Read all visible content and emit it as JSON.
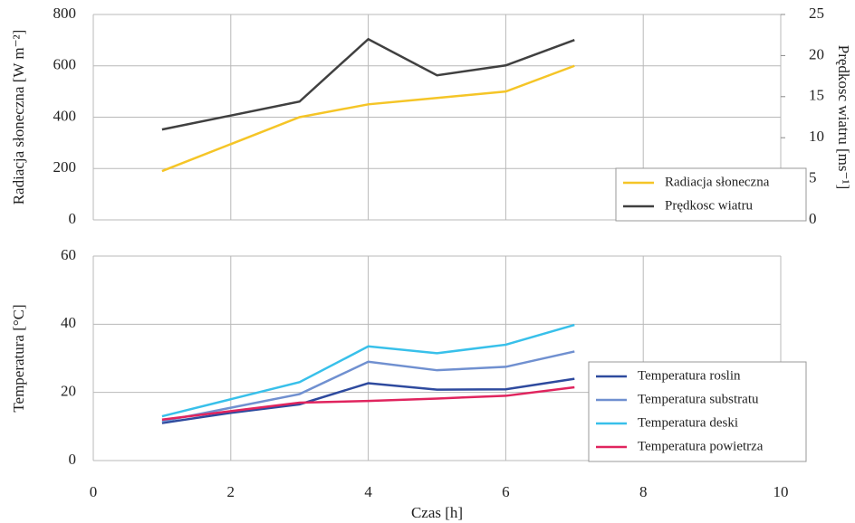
{
  "chart_data": [
    {
      "type": "line",
      "ylabel": "Radiacja słoneczna [W m⁻²]",
      "y2label": "Prędkosc wiatru [ms⁻¹]",
      "x": [
        1,
        2,
        3,
        4,
        5,
        6,
        7
      ],
      "xlim": [
        0,
        10
      ],
      "ylim": [
        0,
        800
      ],
      "yticks": [
        0,
        200,
        400,
        600,
        800
      ],
      "y2lim": [
        0,
        25
      ],
      "y2ticks": [
        0,
        5,
        10,
        15,
        20,
        25
      ],
      "grid": true,
      "legend": "lower right",
      "series": [
        {
          "name": "Radiacja słoneczna",
          "color": "#f5c527",
          "values": [
            190,
            295,
            400,
            450,
            475,
            500,
            600
          ]
        },
        {
          "name": "Prędkosc wiatru",
          "color": "#404040",
          "axis": "y2",
          "values": [
            11,
            12.7,
            14.4,
            22,
            17.6,
            18.8,
            21.9
          ]
        }
      ]
    },
    {
      "type": "line",
      "ylabel": "Temperatura [°C]",
      "xlabel": "Czas [h]",
      "x": [
        1,
        2,
        3,
        4,
        5,
        6,
        7
      ],
      "xlim": [
        0,
        10
      ],
      "xticks": [
        0,
        2,
        4,
        6,
        8,
        10
      ],
      "ylim": [
        0,
        60
      ],
      "yticks": [
        0,
        20,
        40,
        60
      ],
      "grid": true,
      "legend": "lower right",
      "series": [
        {
          "name": "Temperatura roslin",
          "color": "#2e4a9e",
          "values": [
            11,
            14,
            16.5,
            22.7,
            20.8,
            20.9,
            24
          ]
        },
        {
          "name": "Temperatura substratu",
          "color": "#7090d0",
          "values": [
            11.5,
            15.5,
            19.5,
            29,
            26.5,
            27.5,
            32
          ]
        },
        {
          "name": "Temperatura deski",
          "color": "#38c0ea",
          "values": [
            13,
            18,
            23,
            33.5,
            31.5,
            34,
            39.8
          ]
        },
        {
          "name": "Temperatura powietrza",
          "color": "#e0245e",
          "values": [
            12,
            14.5,
            17,
            17.5,
            18.2,
            19,
            21.5
          ]
        }
      ]
    }
  ]
}
